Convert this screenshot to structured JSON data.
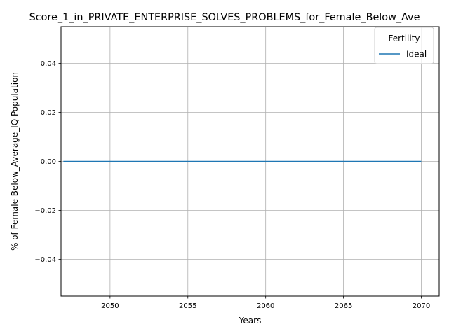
{
  "chart_data": {
    "type": "line",
    "title": "Score_1_in_PRIVATE_ENTERPRISE_SOLVES_PROBLEMS_for_Female_Below_Ave",
    "xlabel": "Years",
    "ylabel": "% of Female Below_Average_IQ Population",
    "xlim": [
      2046.85,
      2071.15
    ],
    "ylim": [
      -0.055,
      0.055
    ],
    "x_ticks": [
      2050,
      2055,
      2060,
      2065,
      2070
    ],
    "x_tick_labels": [
      "2050",
      "2055",
      "2060",
      "2065",
      "2070"
    ],
    "y_ticks": [
      0.04,
      0.02,
      0.0,
      -0.02,
      -0.04
    ],
    "y_tick_labels": [
      "0.04",
      "0.02",
      "0.00",
      "−0.02",
      "−0.04"
    ],
    "grid": true,
    "legend": {
      "title": "Fertility",
      "placement": "top-right"
    },
    "series": [
      {
        "name": "Ideal",
        "color": "#1f77b4",
        "x": [
          2047,
          2048,
          2049,
          2050,
          2051,
          2052,
          2053,
          2054,
          2055,
          2056,
          2057,
          2058,
          2059,
          2060,
          2061,
          2062,
          2063,
          2064,
          2065,
          2066,
          2067,
          2068,
          2069,
          2070
        ],
        "y": [
          0,
          0,
          0,
          0,
          0,
          0,
          0,
          0,
          0,
          0,
          0,
          0,
          0,
          0,
          0,
          0,
          0,
          0,
          0,
          0,
          0,
          0,
          0,
          0
        ]
      }
    ]
  }
}
